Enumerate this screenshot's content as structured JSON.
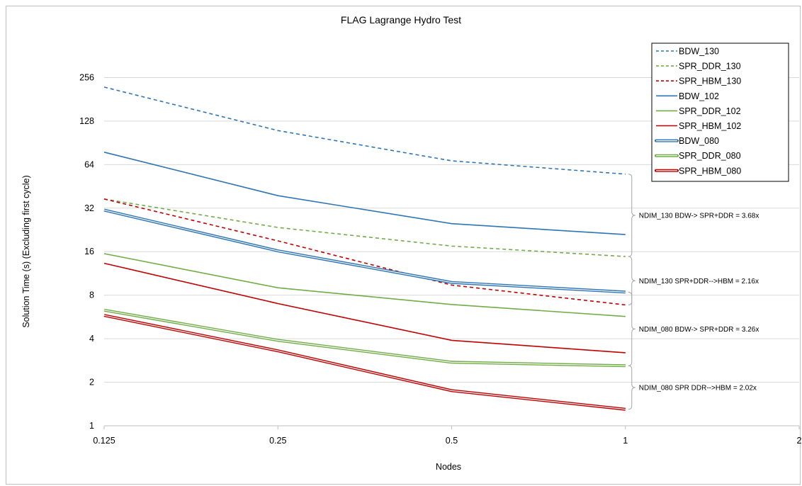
{
  "chart_data": {
    "type": "line",
    "title": "FLAG Lagrange Hydro Test",
    "xlabel": "Nodes",
    "ylabel": "Solution Time (s) (Excluding first cycle)",
    "x_scale": "log2",
    "y_scale": "log2",
    "xlim": [
      0.125,
      2
    ],
    "ylim": [
      1,
      512
    ],
    "x_ticks": [
      "0.125",
      "0.25",
      "0.5",
      "1",
      "2"
    ],
    "y_ticks": [
      "1",
      "2",
      "4",
      "8",
      "16",
      "32",
      "64",
      "128",
      "256"
    ],
    "grid": "horizontal",
    "legend_position": "top-right",
    "x": [
      0.125,
      0.25,
      0.5,
      1
    ],
    "series": [
      {
        "name": "BDW_130",
        "values": [
          220,
          110,
          68,
          55
        ],
        "color": "#2e75b6",
        "style": "dashed"
      },
      {
        "name": "SPR_DDR_130",
        "values": [
          37,
          23.5,
          17.5,
          14.8
        ],
        "color": "#70ad47",
        "style": "dashed"
      },
      {
        "name": "SPR_HBM_130",
        "values": [
          37,
          19,
          9.4,
          6.85
        ],
        "color": "#c00000",
        "style": "dashed"
      },
      {
        "name": "BDW_102",
        "values": [
          78,
          39,
          25,
          21
        ],
        "color": "#2e75b6",
        "style": "solid"
      },
      {
        "name": "SPR_DDR_102",
        "values": [
          15.5,
          9,
          6.9,
          5.7
        ],
        "color": "#70ad47",
        "style": "solid"
      },
      {
        "name": "SPR_HBM_102",
        "values": [
          13.3,
          7,
          3.9,
          3.2
        ],
        "color": "#c00000",
        "style": "solid"
      },
      {
        "name": "BDW_080",
        "values": [
          31,
          16.2,
          9.8,
          8.4
        ],
        "color": "#2e75b6",
        "style": "double"
      },
      {
        "name": "SPR_DDR_080",
        "values": [
          6.3,
          3.9,
          2.75,
          2.6
        ],
        "color": "#70ad47",
        "style": "double"
      },
      {
        "name": "SPR_HBM_080",
        "values": [
          5.8,
          3.3,
          1.75,
          1.3
        ],
        "color": "#c00000",
        "style": "double"
      }
    ],
    "annotations": [
      {
        "text": "NDIM_130 BDW-> SPR+DDR = 3.68x",
        "from": 55,
        "to": 14.8
      },
      {
        "text": "NDIM_130 SPR+DDR-->HBM = 2.16x",
        "from": 14.8,
        "to": 6.85
      },
      {
        "text": "NDIM_080 BDW-> SPR+DDR = 3.26x",
        "from": 8.4,
        "to": 2.6
      },
      {
        "text": "NDIM_080 SPR DDR-->HBM = 2.02x",
        "from": 2.6,
        "to": 1.3
      }
    ]
  }
}
